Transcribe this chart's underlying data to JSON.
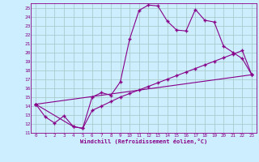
{
  "xlabel": "Windchill (Refroidissement éolien,°C)",
  "bg_color": "#cceeff",
  "grid_color": "#aacccc",
  "line_color": "#880088",
  "xlim": [
    -0.5,
    23.5
  ],
  "ylim": [
    11,
    25.5
  ],
  "yticks": [
    11,
    12,
    13,
    14,
    15,
    16,
    17,
    18,
    19,
    20,
    21,
    22,
    23,
    24,
    25
  ],
  "xticks": [
    0,
    1,
    2,
    3,
    4,
    5,
    6,
    7,
    8,
    9,
    10,
    11,
    12,
    13,
    14,
    15,
    16,
    17,
    18,
    19,
    20,
    21,
    22,
    23
  ],
  "line1_x": [
    0,
    1,
    2,
    3,
    4,
    5,
    6,
    7,
    8,
    9,
    10,
    11,
    12,
    13,
    14,
    15,
    16,
    17,
    18,
    19,
    20,
    21,
    22,
    23
  ],
  "line1_y": [
    14.2,
    12.8,
    12.1,
    12.9,
    11.7,
    11.5,
    15.0,
    15.5,
    15.2,
    16.7,
    21.5,
    24.7,
    25.3,
    25.2,
    23.5,
    22.5,
    22.4,
    24.8,
    23.6,
    23.4,
    20.7,
    20.0,
    19.3,
    17.5
  ],
  "line2_x": [
    0,
    4,
    5,
    6,
    7,
    8,
    9,
    10,
    11,
    12,
    13,
    14,
    15,
    16,
    17,
    18,
    19,
    20,
    21,
    22,
    23
  ],
  "line2_y": [
    14.2,
    11.7,
    11.5,
    13.5,
    14.0,
    14.5,
    15.0,
    15.4,
    15.8,
    16.2,
    16.6,
    17.0,
    17.4,
    17.8,
    18.2,
    18.6,
    19.0,
    19.4,
    19.8,
    20.2,
    17.5
  ],
  "line3_x": [
    0,
    23
  ],
  "line3_y": [
    14.2,
    17.5
  ]
}
